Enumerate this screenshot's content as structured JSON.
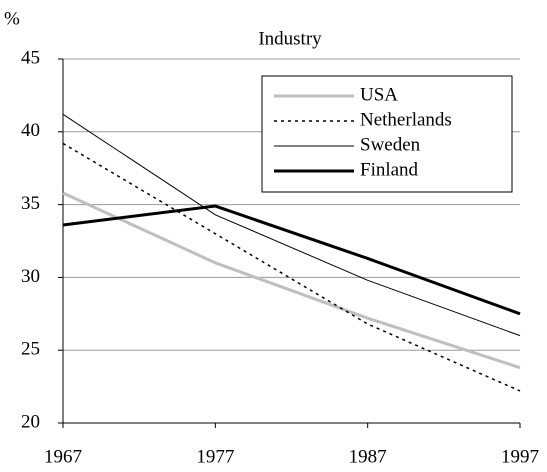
{
  "chart_data": {
    "type": "line",
    "title": "Industry",
    "y_label": "%",
    "x": [
      1967,
      1977,
      1987,
      1997
    ],
    "xlim": [
      1967,
      1997
    ],
    "xticks": [
      1967,
      1977,
      1987,
      1997
    ],
    "ylim": [
      20,
      45
    ],
    "yticks": [
      20,
      25,
      30,
      35,
      40,
      45
    ],
    "grid": true,
    "legend": "upper right",
    "series": [
      {
        "name": "USA",
        "color": "#bfbfbf",
        "linestyle": "solid",
        "linewidth": 3,
        "values": [
          35.8,
          31.0,
          27.2,
          23.8
        ]
      },
      {
        "name": "Netherlands",
        "color": "#000000",
        "linestyle": "dotted",
        "linewidth": 1.5,
        "values": [
          39.2,
          33.0,
          26.8,
          22.2
        ]
      },
      {
        "name": "Sweden",
        "color": "#000000",
        "linestyle": "solid",
        "linewidth": 1,
        "values": [
          41.2,
          34.3,
          29.8,
          26.0
        ]
      },
      {
        "name": "Finland",
        "color": "#000000",
        "linestyle": "solid",
        "linewidth": 3,
        "values": [
          33.6,
          34.9,
          31.3,
          27.5
        ]
      }
    ]
  }
}
